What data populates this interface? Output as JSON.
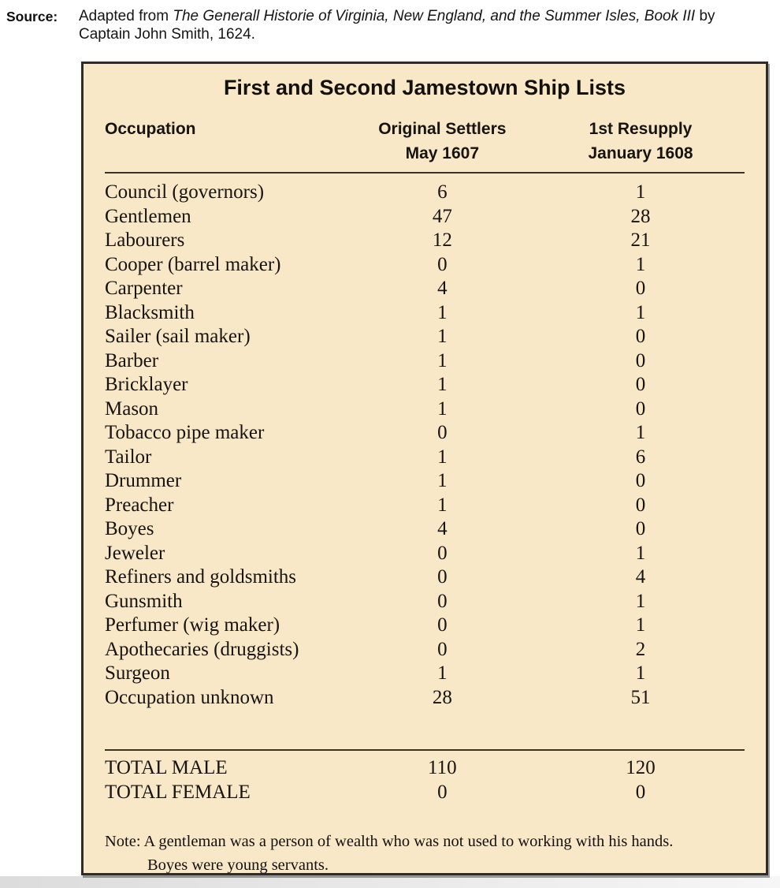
{
  "source": {
    "label": "Source:",
    "prefix": "Adapted from ",
    "work_title": "The Generall Historie of Virginia, New England, and the Summer Isles, Book III",
    "suffix": " by Captain John Smith, 1624."
  },
  "table": {
    "title": "First and Second Jamestown Ship Lists",
    "columns": [
      {
        "label": "Occupation",
        "sublabel": ""
      },
      {
        "label": "Original Settlers",
        "sublabel": "May 1607"
      },
      {
        "label": "1st Resupply",
        "sublabel": "January 1608"
      }
    ],
    "rows": [
      {
        "occupation": "Council (governors)",
        "original_settlers": "6",
        "first_resupply": "1"
      },
      {
        "occupation": "Gentlemen",
        "original_settlers": "47",
        "first_resupply": "28"
      },
      {
        "occupation": "Labourers",
        "original_settlers": "12",
        "first_resupply": "21"
      },
      {
        "occupation": "Cooper (barrel maker)",
        "original_settlers": "0",
        "first_resupply": "1"
      },
      {
        "occupation": "Carpenter",
        "original_settlers": "4",
        "first_resupply": "0"
      },
      {
        "occupation": "Blacksmith",
        "original_settlers": "1",
        "first_resupply": "1"
      },
      {
        "occupation": "Sailer (sail maker)",
        "original_settlers": "1",
        "first_resupply": "0"
      },
      {
        "occupation": "Barber",
        "original_settlers": "1",
        "first_resupply": "0"
      },
      {
        "occupation": "Bricklayer",
        "original_settlers": "1",
        "first_resupply": "0"
      },
      {
        "occupation": "Mason",
        "original_settlers": "1",
        "first_resupply": "0"
      },
      {
        "occupation": "Tobacco pipe maker",
        "original_settlers": "0",
        "first_resupply": "1"
      },
      {
        "occupation": "Tailor",
        "original_settlers": "1",
        "first_resupply": "6"
      },
      {
        "occupation": "Drummer",
        "original_settlers": "1",
        "first_resupply": "0"
      },
      {
        "occupation": "Preacher",
        "original_settlers": "1",
        "first_resupply": "0"
      },
      {
        "occupation": "Boyes",
        "original_settlers": "4",
        "first_resupply": "0"
      },
      {
        "occupation": "Jeweler",
        "original_settlers": "0",
        "first_resupply": "1"
      },
      {
        "occupation": "Refiners and goldsmiths",
        "original_settlers": "0",
        "first_resupply": "4"
      },
      {
        "occupation": "Gunsmith",
        "original_settlers": "0",
        "first_resupply": "1"
      },
      {
        "occupation": "Perfumer (wig maker)",
        "original_settlers": "0",
        "first_resupply": "1"
      },
      {
        "occupation": "Apothecaries (druggists)",
        "original_settlers": "0",
        "first_resupply": "2"
      },
      {
        "occupation": "Surgeon",
        "original_settlers": "1",
        "first_resupply": "1"
      },
      {
        "occupation": "Occupation unknown",
        "original_settlers": "28",
        "first_resupply": "51"
      }
    ],
    "totals": [
      {
        "label": "TOTAL MALE",
        "original_settlers": "110",
        "first_resupply": "120"
      },
      {
        "label": "TOTAL FEMALE",
        "original_settlers": "0",
        "first_resupply": "0"
      }
    ],
    "note_lines": [
      "Note: A gentleman was a person of wealth who was not used to working with his hands.",
      "Boyes were young servants."
    ]
  },
  "colors": {
    "page_bg": "#ffffff",
    "table_bg": "#f8e8c7",
    "border": "#2f2b27",
    "rule": "#3a332b",
    "text": "#171310"
  }
}
